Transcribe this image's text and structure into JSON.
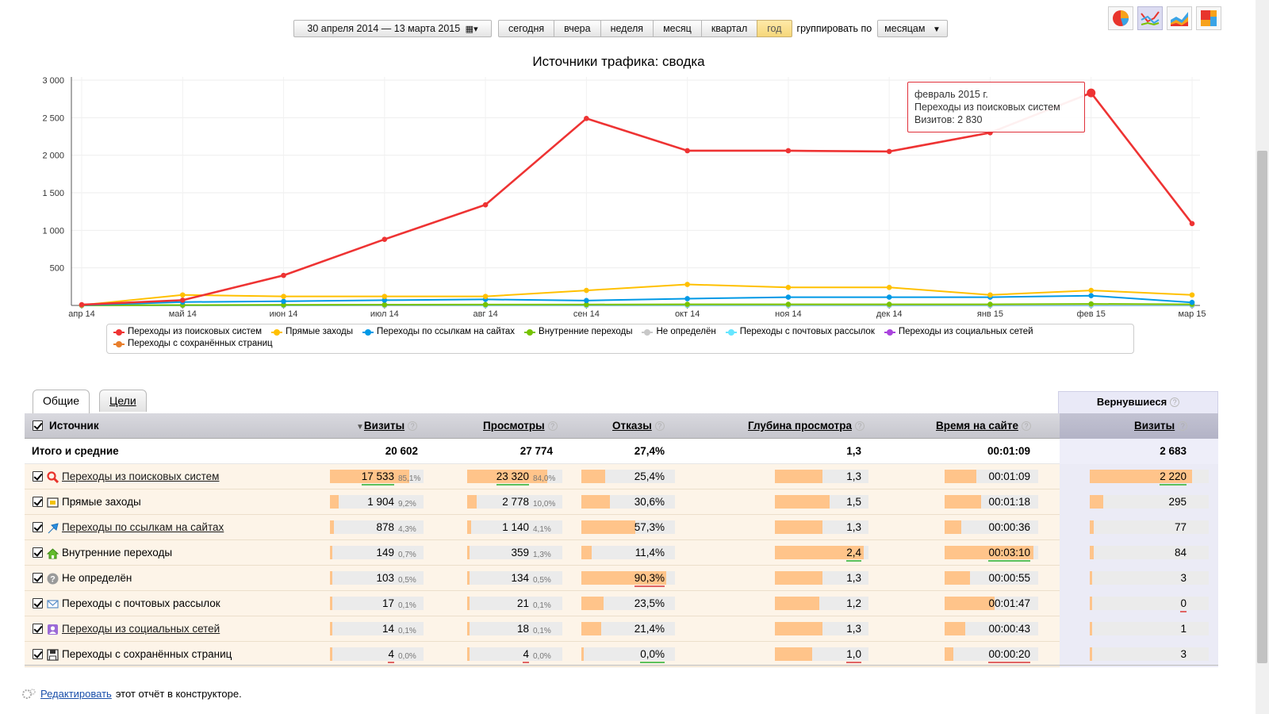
{
  "toolbar": {
    "date_range": "30 апреля 2014 — 13 марта 2015",
    "periods": [
      "сегодня",
      "вчера",
      "неделя",
      "месяц",
      "квартал",
      "год"
    ],
    "active_period": "год",
    "group_by_label": "группировать по",
    "group_by_value": "месяцам"
  },
  "chart_types": [
    "pie-chart-icon",
    "line-chart-icon",
    "area-chart-icon",
    "treemap-icon"
  ],
  "chart_data": {
    "type": "line",
    "title": "Источники трафика: сводка",
    "categories": [
      "апр 14",
      "май 14",
      "июн 14",
      "июл 14",
      "авг 14",
      "сен 14",
      "окт 14",
      "ноя 14",
      "дек 14",
      "янв 15",
      "фев 15",
      "мар 15"
    ],
    "yticks": [
      "3 000",
      "2 500",
      "2 000",
      "1 500",
      "1 000",
      "500"
    ],
    "ylim": [
      0,
      3000
    ],
    "grid": true,
    "legend_position": "bottom",
    "series": [
      {
        "name": "Переходы из поисковых систем",
        "color": "#ee3333",
        "values": [
          10,
          70,
          400,
          880,
          1340,
          2490,
          2060,
          2060,
          2050,
          2300,
          2830,
          1090
        ]
      },
      {
        "name": "Прямые заходы",
        "color": "#ffc000",
        "values": [
          5,
          140,
          120,
          120,
          120,
          200,
          280,
          240,
          240,
          140,
          200,
          140
        ]
      },
      {
        "name": "Переходы по ссылкам на сайтах",
        "color": "#0099e6",
        "values": [
          3,
          45,
          55,
          70,
          80,
          65,
          90,
          110,
          110,
          110,
          130,
          40
        ]
      },
      {
        "name": "Внутренние переходы",
        "color": "#77c300",
        "values": [
          1,
          5,
          8,
          10,
          12,
          12,
          15,
          15,
          15,
          15,
          20,
          15
        ]
      },
      {
        "name": "Не определён",
        "color": "#c8c8c8",
        "values": [
          1,
          5,
          8,
          8,
          10,
          10,
          12,
          10,
          10,
          10,
          12,
          10
        ]
      },
      {
        "name": "Переходы с почтовых рассылок",
        "color": "#66e6ff",
        "values": [
          0,
          1,
          1,
          2,
          2,
          2,
          2,
          2,
          2,
          2,
          2,
          2
        ]
      },
      {
        "name": "Переходы из социальных сетей",
        "color": "#aa44dd",
        "values": [
          0,
          1,
          1,
          2,
          2,
          2,
          2,
          2,
          2,
          1,
          1,
          1
        ]
      },
      {
        "name": "Переходы с сохранённых страниц",
        "color": "#e87f2c",
        "values": [
          0,
          0,
          0,
          0,
          1,
          0,
          1,
          1,
          0,
          0,
          1,
          0
        ]
      }
    ]
  },
  "tooltip": {
    "line1": "февраль 2015 г.",
    "line2": "Переходы из поисковых систем",
    "line3": "Визитов: 2 830"
  },
  "tabs": {
    "general": "Общие",
    "goals": "Цели"
  },
  "table": {
    "returned_header": "Вернувшиеся",
    "columns": {
      "source": "Источник",
      "visits": "Визиты",
      "views": "Просмотры",
      "bounces": "Отказы",
      "depth": "Глубина просмотра",
      "time": "Время на сайте",
      "ret_visits": "Визиты"
    },
    "totals": {
      "label": "Итого и средние",
      "visits": "20 602",
      "views": "27 774",
      "bounces": "27,4%",
      "depth": "1,3",
      "time": "00:01:09",
      "ret_visits": "2 683"
    },
    "rows": [
      {
        "icon": "search-icon",
        "name": "Переходы из поисковых систем",
        "link": true,
        "visits": "17 533",
        "visits_pct": "85,1%",
        "visits_frac": 0.851,
        "views": "23 320",
        "views_pct": "84,0%",
        "views_frac": 0.84,
        "bounces": "25,4%",
        "bounces_frac": 0.254,
        "depth": "1,3",
        "depth_frac": 0.54,
        "time": "00:01:09",
        "time_frac": 0.36,
        "ret_visits": "2 220",
        "ret_frac": 0.86
      },
      {
        "icon": "direct-icon",
        "name": "Прямые заходы",
        "link": false,
        "visits": "1 904",
        "visits_pct": "9,2%",
        "visits_frac": 0.092,
        "views": "2 778",
        "views_pct": "10,0%",
        "views_frac": 0.1,
        "bounces": "30,6%",
        "bounces_frac": 0.306,
        "depth": "1,5",
        "depth_frac": 0.62,
        "time": "00:01:18",
        "time_frac": 0.41,
        "ret_visits": "295",
        "ret_frac": 0.11
      },
      {
        "icon": "link-arrow-icon",
        "name": "Переходы по ссылкам на сайтах",
        "link": true,
        "visits": "878",
        "visits_pct": "4,3%",
        "visits_frac": 0.043,
        "views": "1 140",
        "views_pct": "4,1%",
        "views_frac": 0.041,
        "bounces": "57,3%",
        "bounces_frac": 0.573,
        "depth": "1,3",
        "depth_frac": 0.54,
        "time": "00:00:36",
        "time_frac": 0.19,
        "ret_visits": "77",
        "ret_frac": 0.03
      },
      {
        "icon": "home-icon",
        "name": "Внутренние переходы",
        "link": false,
        "visits": "149",
        "visits_pct": "0,7%",
        "visits_frac": 0.007,
        "views": "359",
        "views_pct": "1,3%",
        "views_frac": 0.013,
        "bounces": "11,4%",
        "bounces_frac": 0.114,
        "depth": "2,4",
        "depth_frac": 1.0,
        "time": "00:03:10",
        "time_frac": 1.0,
        "ret_visits": "84",
        "ret_frac": 0.03
      },
      {
        "icon": "question-icon",
        "name": "Не определён",
        "link": false,
        "visits": "103",
        "visits_pct": "0,5%",
        "visits_frac": 0.005,
        "views": "134",
        "views_pct": "0,5%",
        "views_frac": 0.005,
        "bounces": "90,3%",
        "bounces_frac": 0.903,
        "depth": "1,3",
        "depth_frac": 0.54,
        "time": "00:00:55",
        "time_frac": 0.29,
        "ret_visits": "3",
        "ret_frac": 0.01
      },
      {
        "icon": "mail-icon",
        "name": "Переходы с почтовых рассылок",
        "link": false,
        "visits": "17",
        "visits_pct": "0,1%",
        "visits_frac": 0.001,
        "views": "21",
        "views_pct": "0,1%",
        "views_frac": 0.001,
        "bounces": "23,5%",
        "bounces_frac": 0.235,
        "depth": "1,2",
        "depth_frac": 0.5,
        "time": "00:01:47",
        "time_frac": 0.56,
        "ret_visits": "0",
        "ret_frac": 0.0
      },
      {
        "icon": "social-icon",
        "name": "Переходы из социальных сетей",
        "link": true,
        "visits": "14",
        "visits_pct": "0,1%",
        "visits_frac": 0.001,
        "views": "18",
        "views_pct": "0,1%",
        "views_frac": 0.001,
        "bounces": "21,4%",
        "bounces_frac": 0.214,
        "depth": "1,3",
        "depth_frac": 0.54,
        "time": "00:00:43",
        "time_frac": 0.23,
        "ret_visits": "1",
        "ret_frac": 0.005
      },
      {
        "icon": "floppy-icon",
        "name": "Переходы с сохранённых страниц",
        "link": false,
        "visits": "4",
        "visits_pct": "0,0%",
        "visits_frac": 0.0,
        "views": "4",
        "views_pct": "0,0%",
        "views_frac": 0.0,
        "bounces": "0,0%",
        "bounces_frac": 0.0,
        "depth": "1,0",
        "depth_frac": 0.42,
        "time": "00:00:20",
        "time_frac": 0.1,
        "ret_visits": "3",
        "ret_frac": 0.01
      }
    ]
  },
  "footer": {
    "link": "Редактировать",
    "text": "этот отчёт в конструкторе."
  }
}
